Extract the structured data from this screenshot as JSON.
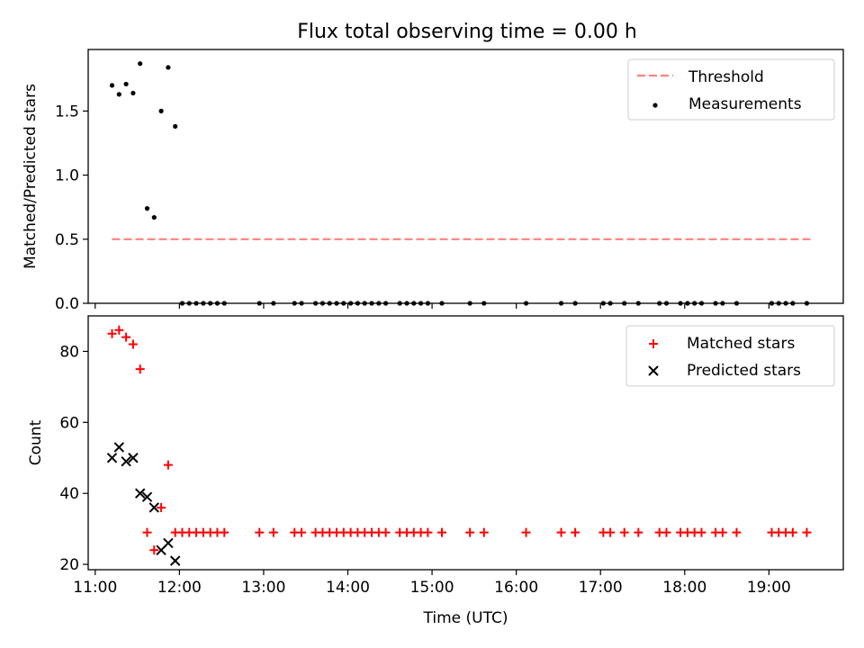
{
  "figure": {
    "title": "Flux total observing time = 0.00 h"
  },
  "colors": {
    "threshold": "#ff8080",
    "measurements": "#000000",
    "matched": "#ff0000",
    "predicted": "#000000"
  },
  "chart_data": [
    {
      "type": "scatter",
      "panel": "top",
      "ylabel": "Matched/Predicted stars",
      "ylim": [
        0,
        1.98
      ],
      "yticks": [
        0.0,
        0.5,
        1.0,
        1.5
      ],
      "ytick_labels": [
        "0.0",
        "0.5",
        "1.0",
        "1.5"
      ],
      "legend_position": "upper right",
      "legend": [
        "Threshold",
        "Measurements"
      ],
      "threshold": {
        "name": "Threshold",
        "x": [
          "11:12",
          "19:30"
        ],
        "y": 0.5,
        "style": "dashed"
      },
      "series": [
        {
          "name": "Measurements",
          "marker": "dot",
          "x": [
            "11:12",
            "11:17",
            "11:22",
            "11:27",
            "11:32",
            "11:37",
            "11:42",
            "11:47",
            "11:52",
            "11:57",
            "12:02",
            "12:07",
            "12:12",
            "12:17",
            "12:22",
            "12:27",
            "12:32",
            "12:57",
            "13:07",
            "13:22",
            "13:27",
            "13:37",
            "13:42",
            "13:47",
            "13:52",
            "13:57",
            "14:02",
            "14:07",
            "14:12",
            "14:17",
            "14:22",
            "14:27",
            "14:37",
            "14:42",
            "14:47",
            "14:52",
            "14:57",
            "15:07",
            "15:27",
            "15:37",
            "16:07",
            "16:32",
            "16:42",
            "17:02",
            "17:07",
            "17:17",
            "17:27",
            "17:42",
            "17:47",
            "17:57",
            "18:02",
            "18:07",
            "18:12",
            "18:22",
            "18:27",
            "18:37",
            "19:02",
            "19:07",
            "19:12",
            "19:17",
            "19:27"
          ],
          "y": [
            1.7,
            1.63,
            1.71,
            1.64,
            1.87,
            0.74,
            0.67,
            1.5,
            1.84,
            1.38,
            0,
            0,
            0,
            0,
            0,
            0,
            0,
            0,
            0,
            0,
            0,
            0,
            0,
            0,
            0,
            0,
            0,
            0,
            0,
            0,
            0,
            0,
            0,
            0,
            0,
            0,
            0,
            0,
            0,
            0,
            0,
            0,
            0,
            0,
            0,
            0,
            0,
            0,
            0,
            0,
            0,
            0,
            0,
            0,
            0,
            0,
            0,
            0,
            0,
            0,
            0
          ]
        }
      ]
    },
    {
      "type": "scatter",
      "panel": "bottom",
      "xlabel": "Time (UTC)",
      "ylabel": "Count",
      "ylim": [
        18.5,
        90
      ],
      "yticks": [
        20,
        40,
        60,
        80
      ],
      "ytick_labels": [
        "20",
        "40",
        "60",
        "80"
      ],
      "xlim": [
        "10:55",
        "19:53"
      ],
      "xticks": [
        "11:00",
        "12:00",
        "13:00",
        "14:00",
        "15:00",
        "16:00",
        "17:00",
        "18:00",
        "19:00"
      ],
      "xtick_labels": [
        "11:00",
        "12:00",
        "13:00",
        "14:00",
        "15:00",
        "16:00",
        "17:00",
        "18:00",
        "19:00"
      ],
      "legend_position": "upper right",
      "legend": [
        "Matched stars",
        "Predicted stars"
      ],
      "series": [
        {
          "name": "Matched stars",
          "marker": "plus",
          "x": [
            "11:12",
            "11:17",
            "11:22",
            "11:27",
            "11:32",
            "11:37",
            "11:42",
            "11:47",
            "11:52",
            "11:57",
            "12:02",
            "12:07",
            "12:12",
            "12:17",
            "12:22",
            "12:27",
            "12:32",
            "12:57",
            "13:07",
            "13:22",
            "13:27",
            "13:37",
            "13:42",
            "13:47",
            "13:52",
            "13:57",
            "14:02",
            "14:07",
            "14:12",
            "14:17",
            "14:22",
            "14:27",
            "14:37",
            "14:42",
            "14:47",
            "14:52",
            "14:57",
            "15:07",
            "15:27",
            "15:37",
            "16:07",
            "16:32",
            "16:42",
            "17:02",
            "17:07",
            "17:17",
            "17:27",
            "17:42",
            "17:47",
            "17:57",
            "18:02",
            "18:07",
            "18:12",
            "18:22",
            "18:27",
            "18:37",
            "19:02",
            "19:07",
            "19:12",
            "19:17",
            "19:27"
          ],
          "y": [
            85,
            86,
            84,
            82,
            75,
            29,
            24,
            36,
            48,
            29,
            29,
            29,
            29,
            29,
            29,
            29,
            29,
            29,
            29,
            29,
            29,
            29,
            29,
            29,
            29,
            29,
            29,
            29,
            29,
            29,
            29,
            29,
            29,
            29,
            29,
            29,
            29,
            29,
            29,
            29,
            29,
            29,
            29,
            29,
            29,
            29,
            29,
            29,
            29,
            29,
            29,
            29,
            29,
            29,
            29,
            29,
            29,
            29,
            29,
            29,
            29
          ]
        },
        {
          "name": "Predicted stars",
          "marker": "x",
          "x": [
            "11:12",
            "11:17",
            "11:22",
            "11:27",
            "11:32",
            "11:37",
            "11:42",
            "11:47",
            "11:52",
            "11:57"
          ],
          "y": [
            50,
            53,
            49,
            50,
            40,
            39,
            36,
            24,
            26,
            21
          ]
        }
      ]
    }
  ]
}
